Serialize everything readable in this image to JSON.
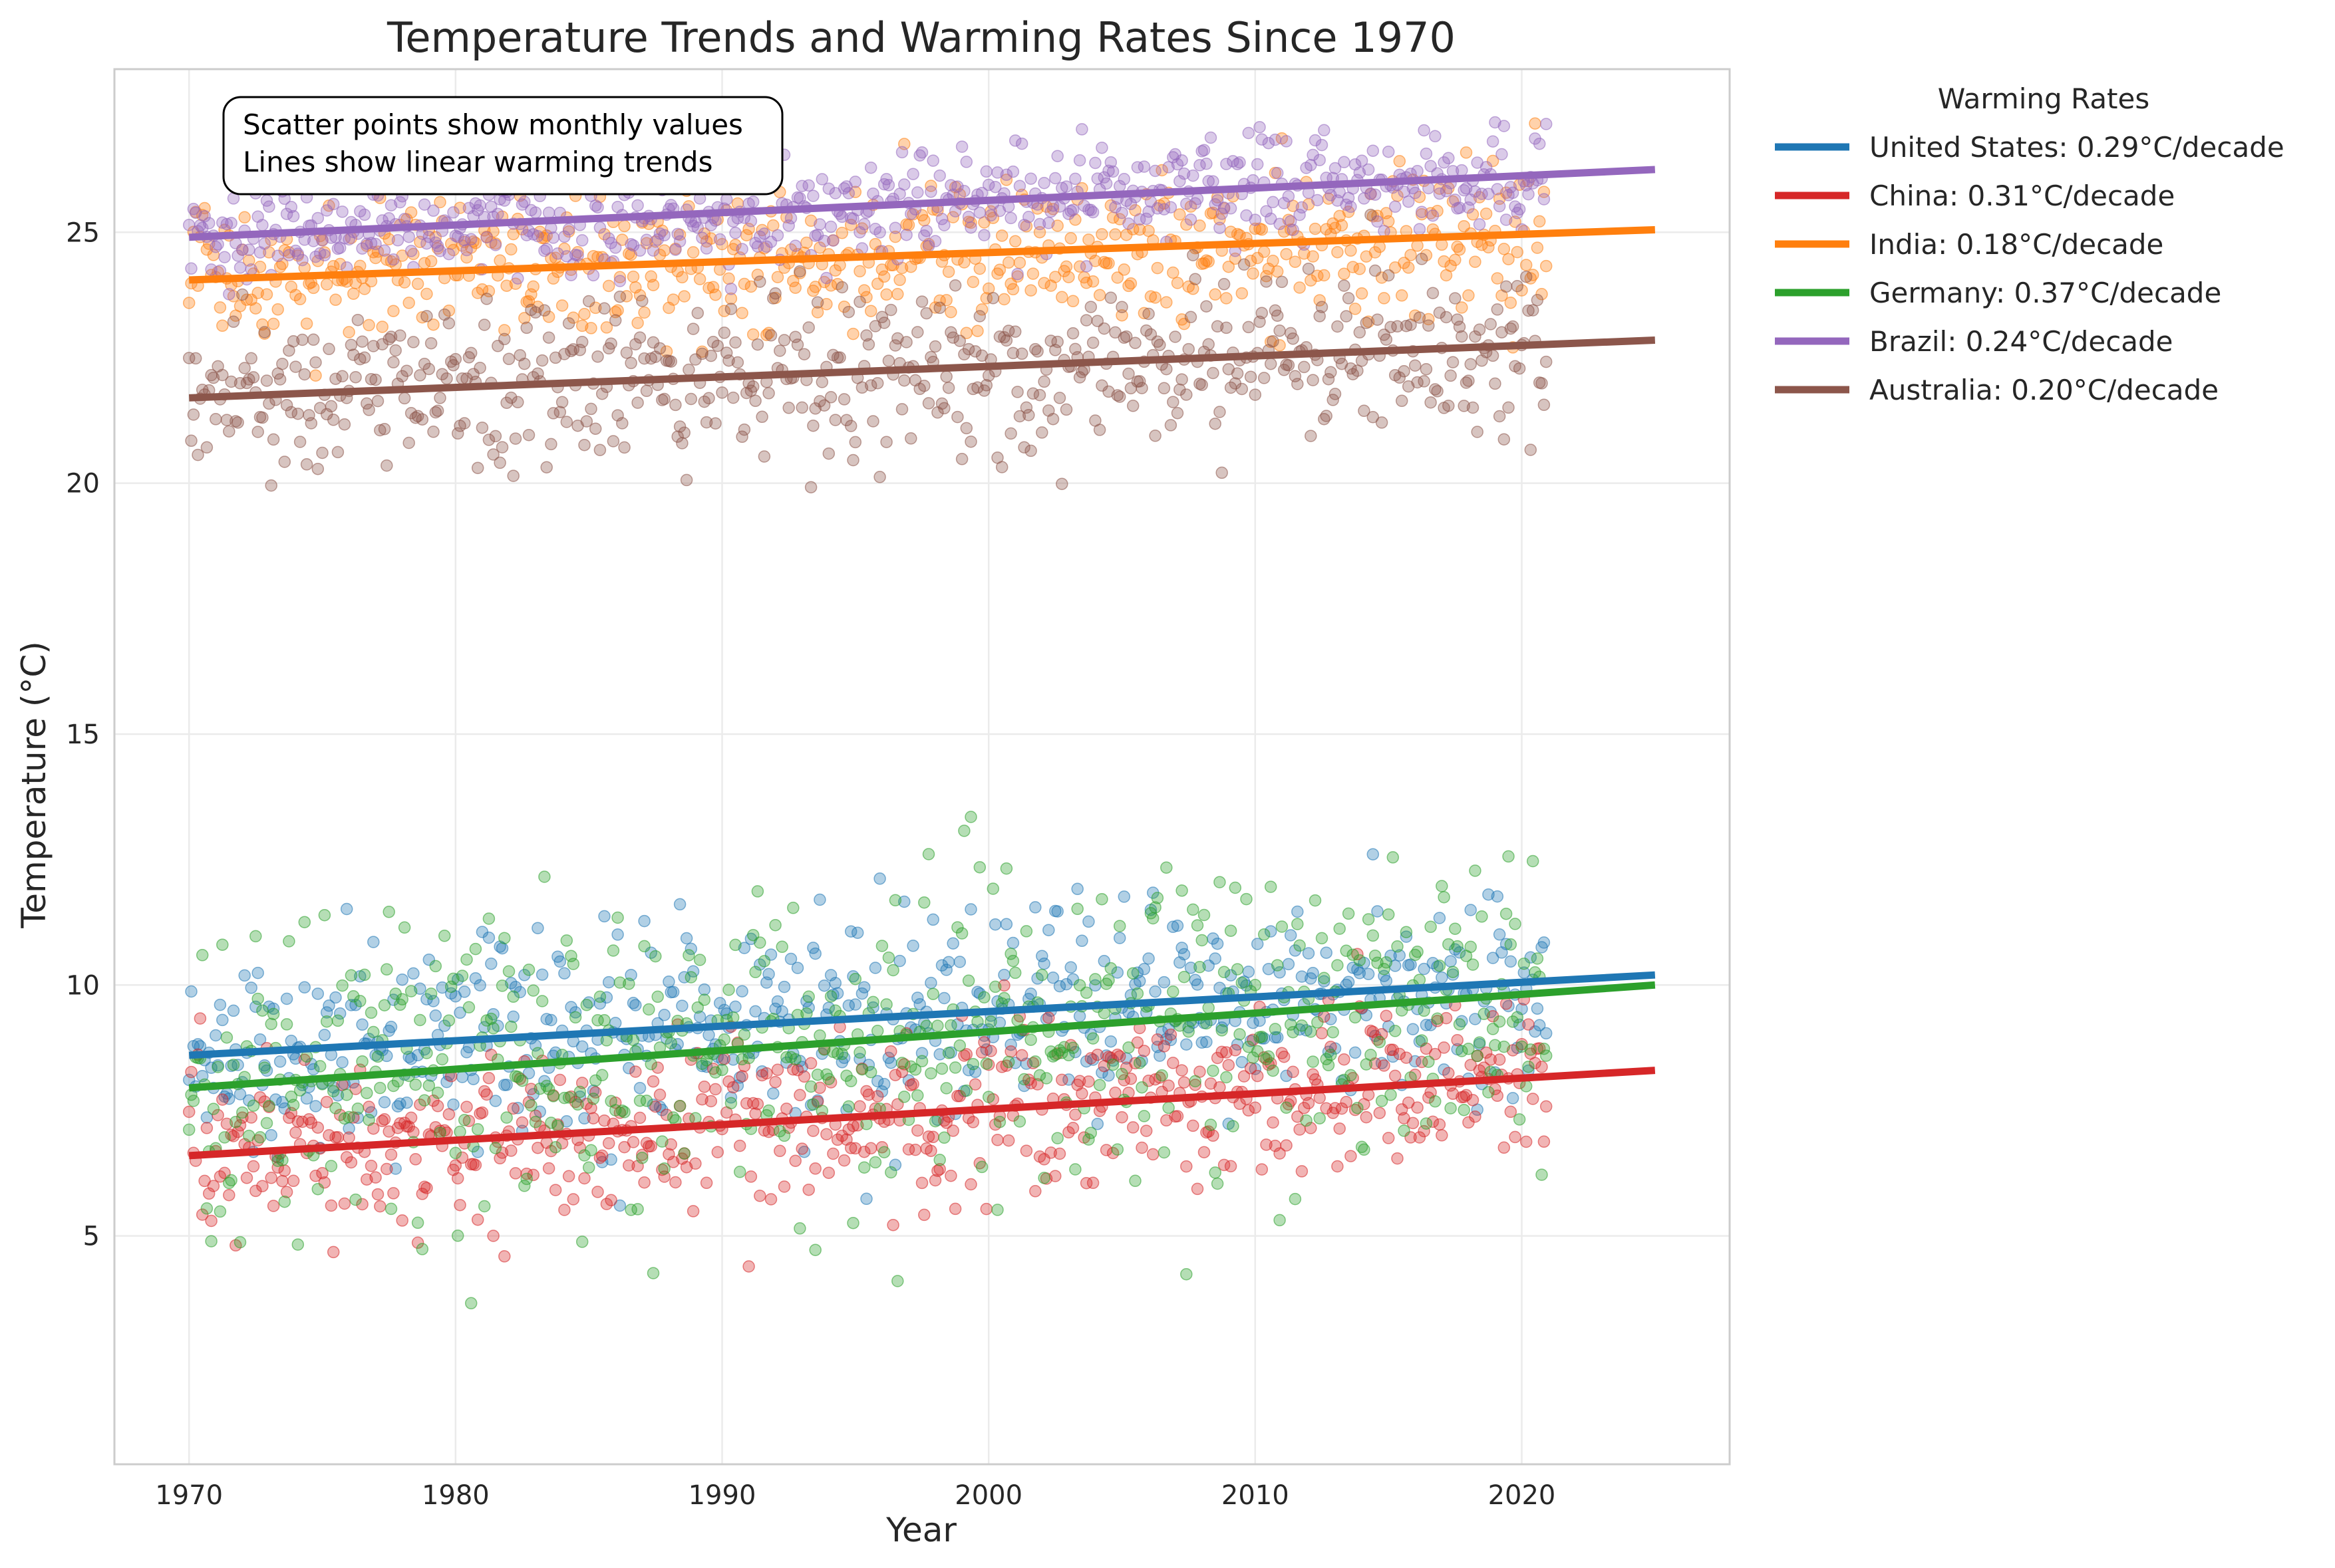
{
  "chart_data": {
    "type": "scatter",
    "title": "Temperature Trends and Warming Rates Since 1970",
    "xlabel": "Year",
    "ylabel": "Temperature (°C)",
    "xlim": [
      1967.2,
      2027.8
    ],
    "ylim": [
      0.45,
      28.25
    ],
    "x_ticks": [
      1970,
      1980,
      1990,
      2000,
      2010,
      2020
    ],
    "y_ticks": [
      5,
      10,
      15,
      20,
      25
    ],
    "grid": true,
    "legend": {
      "title": "Warming Rates",
      "placement": "outside-right-top"
    },
    "annotation": [
      "Scatter points show monthly values",
      "Lines show linear warming trends"
    ],
    "series": [
      {
        "name": "United States",
        "label": "United States: 0.29°C/decade",
        "color": "#1f77b4",
        "rate_per_decade": 0.29,
        "trend": {
          "x": [
            1970,
            2025
          ],
          "y": [
            8.6,
            10.2
          ]
        },
        "scatter": {
          "x_start": 1970,
          "x_end": 2021,
          "count": 612,
          "mean_offset": 0.0,
          "spread": 1.0
        }
      },
      {
        "name": "China",
        "label": "China: 0.31°C/decade",
        "color": "#d62728",
        "rate_per_decade": 0.31,
        "trend": {
          "x": [
            1970,
            2025
          ],
          "y": [
            6.6,
            8.3
          ]
        },
        "scatter": {
          "x_start": 1970,
          "x_end": 2021,
          "count": 612,
          "mean_offset": 0.0,
          "spread": 0.85
        }
      },
      {
        "name": "India",
        "label": "India: 0.18°C/decade",
        "color": "#ff7f0e",
        "rate_per_decade": 0.18,
        "trend": {
          "x": [
            1970,
            2025
          ],
          "y": [
            24.05,
            25.05
          ]
        },
        "scatter": {
          "x_start": 1970,
          "x_end": 2021,
          "count": 612,
          "mean_offset": 0.0,
          "spread": 0.75
        }
      },
      {
        "name": "Germany",
        "label": "Germany: 0.37°C/decade",
        "color": "#2ca02c",
        "rate_per_decade": 0.37,
        "trend": {
          "x": [
            1970,
            2025
          ],
          "y": [
            7.95,
            10.0
          ]
        },
        "scatter": {
          "x_start": 1970,
          "x_end": 2021,
          "count": 612,
          "mean_offset": 0.0,
          "spread": 1.5
        }
      },
      {
        "name": "Brazil",
        "label": "Brazil: 0.24°C/decade",
        "color": "#9467bd",
        "rate_per_decade": 0.24,
        "trend": {
          "x": [
            1970,
            2025
          ],
          "y": [
            24.9,
            26.25
          ]
        },
        "scatter": {
          "x_start": 1970,
          "x_end": 2021,
          "count": 612,
          "mean_offset": 0.0,
          "spread": 0.5
        }
      },
      {
        "name": "Australia",
        "label": "Australia: 0.20°C/decade",
        "color": "#8c564b",
        "rate_per_decade": 0.2,
        "trend": {
          "x": [
            1970,
            2025
          ],
          "y": [
            21.7,
            22.85
          ]
        },
        "scatter": {
          "x_start": 1970,
          "x_end": 2021,
          "count": 612,
          "mean_offset": 0.0,
          "spread": 0.85
        }
      }
    ]
  }
}
